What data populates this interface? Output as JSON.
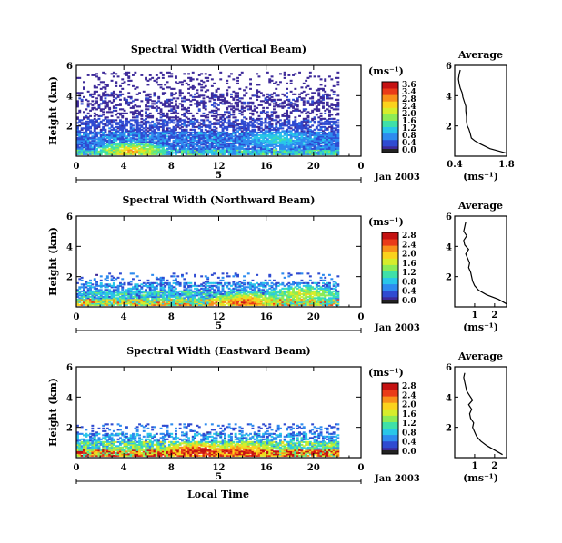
{
  "figure": {
    "xlabel": "Local Time",
    "date_label": "Jan 2003",
    "day_label": "5",
    "ylabel": "Height (km)",
    "colorbar_unit": "(ms⁻¹)",
    "avg_title": "Average",
    "avg_xlabel": "(ms⁻¹)"
  },
  "colormap": [
    "#3d2a99",
    "#2f4bd1",
    "#2e8bef",
    "#29c6e9",
    "#3fe0a8",
    "#8ceb56",
    "#d6ed2b",
    "#fbd21c",
    "#f8901a",
    "#ea3b18",
    "#c51212"
  ],
  "chart_data": [
    {
      "type": "heatmap",
      "title": "Spectral Width (Vertical Beam)",
      "xlabel": "Local Time",
      "ylabel": "Height (km)",
      "xlim": [
        0,
        24
      ],
      "ylim": [
        0,
        6
      ],
      "xticks": [
        "0",
        "4",
        "8",
        "12",
        "16",
        "20",
        "0"
      ],
      "yticks": [
        "2",
        "4",
        "6"
      ],
      "data_xrange": [
        0,
        22
      ],
      "colorbar": {
        "labels": [
          "3.6",
          "3.4",
          "2.8",
          "2.4",
          "2.0",
          "1.6",
          "1.2",
          "0.8",
          "0.4",
          "0.0"
        ],
        "range": [
          0,
          3.6
        ]
      },
      "layers": [
        {
          "h": [
            0.1,
            0.4
          ],
          "v": 1.2,
          "density": 0.92
        },
        {
          "h": [
            0.4,
            1.6
          ],
          "v": 0.7,
          "density": 0.88
        },
        {
          "h": [
            1.6,
            2.4
          ],
          "v": 0.45,
          "density": 0.55
        },
        {
          "h": [
            2.4,
            4.2
          ],
          "v": 0.25,
          "density": 0.3
        },
        {
          "h": [
            4.2,
            5.5
          ],
          "v": 0.2,
          "density": 0.12
        }
      ],
      "hot_spots": [
        {
          "t": 4.5,
          "h": 0.3,
          "v": 2.6
        },
        {
          "t": 17,
          "h": 1.1,
          "v": 1.4
        }
      ],
      "average_profile": {
        "xlim": [
          0.4,
          1.8
        ],
        "xticks": [
          "0.4",
          "1.8"
        ],
        "yticks": [
          "2",
          "4",
          "6"
        ],
        "height": [
          0.2,
          0.5,
          0.8,
          1.0,
          1.2,
          1.5,
          1.8,
          2.0,
          2.3,
          2.6,
          3.0,
          3.3,
          3.6,
          3.9,
          4.2,
          4.5,
          4.8,
          5.1,
          5.4,
          5.7
        ],
        "value": [
          1.8,
          1.35,
          1.1,
          0.95,
          0.85,
          0.82,
          0.78,
          0.74,
          0.72,
          0.72,
          0.7,
          0.7,
          0.66,
          0.62,
          0.6,
          0.55,
          0.52,
          0.5,
          0.52,
          0.55
        ]
      }
    },
    {
      "type": "heatmap",
      "title": "Spectral Width (Northward Beam)",
      "xlabel": "Local Time",
      "ylabel": "Height (km)",
      "xlim": [
        0,
        24
      ],
      "ylim": [
        0,
        6
      ],
      "xticks": [
        "0",
        "4",
        "8",
        "12",
        "16",
        "20",
        "0"
      ],
      "yticks": [
        "2",
        "4",
        "6"
      ],
      "data_xrange": [
        0,
        22
      ],
      "colorbar": {
        "labels": [
          "2.8",
          "2.4",
          "2.0",
          "1.6",
          "1.2",
          "0.8",
          "0.4",
          "0.0"
        ],
        "range": [
          0,
          2.8
        ]
      },
      "layers": [
        {
          "h": [
            0.1,
            0.5
          ],
          "v": 1.6,
          "density": 0.95
        },
        {
          "h": [
            0.5,
            1.0
          ],
          "v": 0.9,
          "density": 0.85
        },
        {
          "h": [
            1.0,
            1.6
          ],
          "v": 0.6,
          "density": 0.55
        },
        {
          "h": [
            1.6,
            2.2
          ],
          "v": 0.5,
          "density": 0.12
        }
      ],
      "hot_spots": [
        {
          "t": 14,
          "h": 0.3,
          "v": 2.4
        },
        {
          "t": 19,
          "h": 0.8,
          "v": 1.8
        }
      ],
      "average_profile": {
        "xlim": [
          0,
          2.6
        ],
        "xticks": [
          "1",
          "2"
        ],
        "yticks": [
          "2",
          "4",
          "6"
        ],
        "height": [
          0.2,
          0.5,
          0.8,
          1.1,
          1.4,
          1.7,
          2.0,
          2.3,
          2.6,
          2.9,
          3.2,
          3.5,
          3.8,
          4.1,
          4.4,
          4.7,
          5.0,
          5.3,
          5.6
        ],
        "value": [
          2.6,
          2.2,
          1.6,
          1.2,
          1.0,
          0.9,
          0.85,
          0.8,
          0.7,
          0.75,
          0.65,
          0.55,
          0.7,
          0.5,
          0.45,
          0.6,
          0.45,
          0.5,
          0.55
        ]
      }
    },
    {
      "type": "heatmap",
      "title": "Spectral Width (Eastward Beam)",
      "xlabel": "Local Time",
      "ylabel": "Height (km)",
      "xlim": [
        0,
        24
      ],
      "ylim": [
        0,
        6
      ],
      "xticks": [
        "0",
        "4",
        "8",
        "12",
        "16",
        "20",
        "0"
      ],
      "yticks": [
        "2",
        "4",
        "6"
      ],
      "data_xrange": [
        0,
        22
      ],
      "colorbar": {
        "labels": [
          "2.8",
          "2.4",
          "2.0",
          "1.6",
          "1.2",
          "0.8",
          "0.4",
          "0.0"
        ],
        "range": [
          0,
          2.8
        ]
      },
      "layers": [
        {
          "h": [
            0.1,
            0.5
          ],
          "v": 2.1,
          "density": 0.95
        },
        {
          "h": [
            0.5,
            1.0
          ],
          "v": 1.2,
          "density": 0.85
        },
        {
          "h": [
            1.0,
            1.6
          ],
          "v": 0.7,
          "density": 0.5
        },
        {
          "h": [
            1.6,
            2.2
          ],
          "v": 0.5,
          "density": 0.15
        }
      ],
      "hot_spots": [
        {
          "t": 10,
          "h": 0.4,
          "v": 2.7
        },
        {
          "t": 14,
          "h": 0.4,
          "v": 2.5
        }
      ],
      "average_profile": {
        "xlim": [
          0,
          2.6
        ],
        "xticks": [
          "1",
          "2"
        ],
        "yticks": [
          "2",
          "4",
          "6"
        ],
        "height": [
          0.2,
          0.5,
          0.8,
          1.1,
          1.4,
          1.7,
          2.0,
          2.3,
          2.6,
          2.9,
          3.2,
          3.5,
          3.8,
          4.1,
          4.4,
          4.7,
          5.0,
          5.3,
          5.6
        ],
        "value": [
          2.4,
          2.0,
          1.6,
          1.3,
          1.1,
          1.0,
          0.9,
          0.95,
          0.8,
          0.75,
          0.85,
          0.7,
          0.9,
          0.75,
          0.6,
          0.55,
          0.5,
          0.45,
          0.5
        ]
      }
    }
  ]
}
